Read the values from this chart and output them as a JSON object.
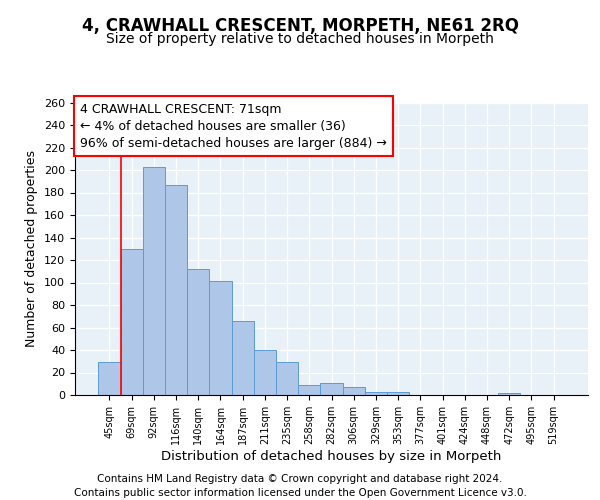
{
  "title1": "4, CRAWHALL CRESCENT, MORPETH, NE61 2RQ",
  "title2": "Size of property relative to detached houses in Morpeth",
  "xlabel": "Distribution of detached houses by size in Morpeth",
  "ylabel": "Number of detached properties",
  "footer1": "Contains HM Land Registry data © Crown copyright and database right 2024.",
  "footer2": "Contains public sector information licensed under the Open Government Licence v3.0.",
  "categories": [
    "45sqm",
    "69sqm",
    "92sqm",
    "116sqm",
    "140sqm",
    "164sqm",
    "187sqm",
    "211sqm",
    "235sqm",
    "258sqm",
    "282sqm",
    "306sqm",
    "329sqm",
    "353sqm",
    "377sqm",
    "401sqm",
    "424sqm",
    "448sqm",
    "472sqm",
    "495sqm",
    "519sqm"
  ],
  "values": [
    29,
    130,
    203,
    187,
    112,
    101,
    66,
    40,
    29,
    9,
    11,
    7,
    3,
    3,
    0,
    0,
    0,
    0,
    2,
    0,
    0
  ],
  "bar_color": "#aec6e8",
  "bar_edge_color": "#5b9bd5",
  "annotation_line1": "4 CRAWHALL CRESCENT: 71sqm",
  "annotation_line2": "← 4% of detached houses are smaller (36)",
  "annotation_line3": "96% of semi-detached houses are larger (884) →",
  "annotation_box_color": "white",
  "annotation_box_edge_color": "red",
  "vline_color": "red",
  "vline_pos": 0.5,
  "ylim": [
    0,
    260
  ],
  "yticks": [
    0,
    20,
    40,
    60,
    80,
    100,
    120,
    140,
    160,
    180,
    200,
    220,
    240,
    260
  ],
  "background_color": "#e8f0f8",
  "grid_color": "white",
  "title1_fontsize": 12,
  "title2_fontsize": 10,
  "annotation_fontsize": 9,
  "xlabel_fontsize": 9.5,
  "ylabel_fontsize": 9,
  "footer_fontsize": 7.5,
  "tick_fontsize": 8,
  "xtick_fontsize": 7
}
